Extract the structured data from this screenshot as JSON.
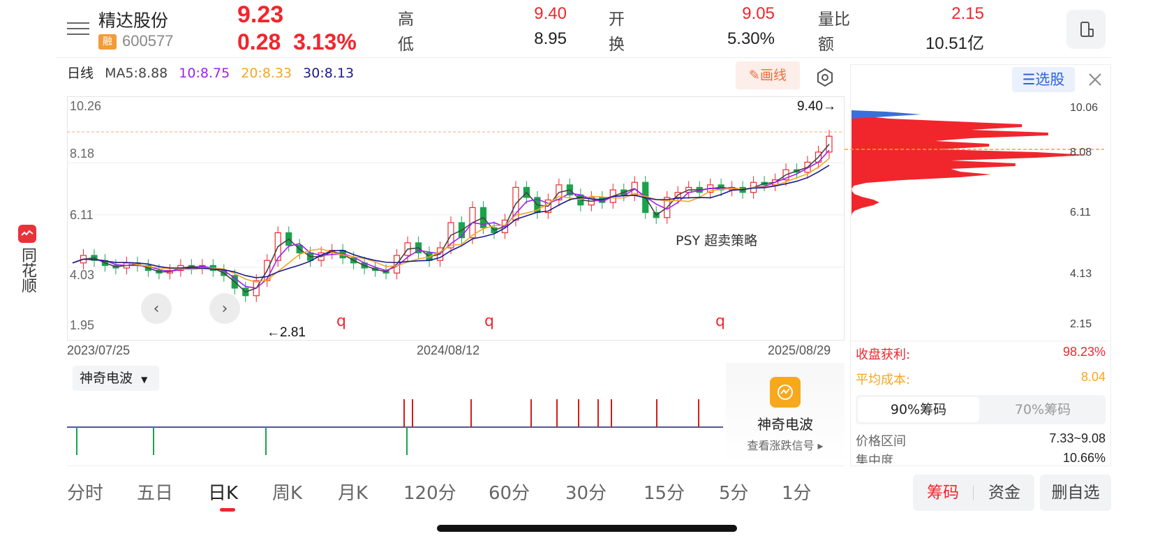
{
  "brand": {
    "name": "同花顺",
    "logo_icon": "ths-logo-icon"
  },
  "header": {
    "stock_name": "精达股份",
    "margin_tag": "融",
    "code": "600577",
    "price": "9.23",
    "change_abs": "0.28",
    "change_pct": "3.13%",
    "stats": [
      {
        "label": "高",
        "value": "9.40",
        "color": "#f0262c"
      },
      {
        "label": "低",
        "value": "8.95",
        "color": "#222222"
      },
      {
        "label": "开",
        "value": "9.05",
        "color": "#f0262c"
      },
      {
        "label": "换",
        "value": "5.30%",
        "color": "#222222"
      },
      {
        "label": "量比",
        "value": "2.15",
        "color": "#f0262c"
      },
      {
        "label": "额",
        "value": "10.51亿",
        "color": "#222222"
      }
    ]
  },
  "ma_row": {
    "period": "日线",
    "ma5": "MA5:8.88",
    "ma10": "10:8.75",
    "ma20": "20:8.33",
    "ma30": "30:8.13",
    "colors": {
      "ma5": "#444444",
      "ma10": "#a020f0",
      "ma20": "#f5a623",
      "ma30": "#1a1a8c"
    }
  },
  "toolbar": {
    "draw_label": "画线",
    "pick_label": "选股"
  },
  "chart_data": {
    "type": "candlestick",
    "y_ticks": [
      "10.26",
      "8.18",
      "6.11",
      "4.03",
      "1.95"
    ],
    "x_ticks": [
      "2023/07/25",
      "2024/08/12",
      "2025/08/29"
    ],
    "ylim": [
      1.95,
      10.26
    ],
    "high_marker": "9.40→",
    "low_marker": "←2.81",
    "strategy_label": "PSY 超卖策略",
    "q_markers": [
      "q",
      "q",
      "q"
    ],
    "close_series": [
      4.2,
      4.5,
      4.3,
      4.1,
      4.0,
      4.2,
      4.1,
      3.9,
      3.8,
      3.9,
      4.1,
      4.0,
      4.1,
      3.9,
      3.7,
      3.2,
      2.9,
      3.5,
      4.3,
      5.4,
      4.9,
      4.6,
      4.3,
      4.6,
      4.7,
      4.4,
      4.2,
      4.0,
      3.9,
      3.8,
      4.5,
      5.0,
      4.6,
      4.3,
      4.8,
      5.8,
      5.2,
      6.4,
      5.6,
      5.4,
      5.9,
      7.2,
      6.8,
      6.2,
      6.7,
      7.3,
      6.9,
      6.5,
      6.8,
      6.6,
      7.1,
      6.9,
      7.4,
      6.2,
      6.0,
      6.8,
      7.0,
      7.2,
      7.0,
      7.3,
      7.1,
      7.2,
      7.0,
      7.4,
      7.3,
      7.5,
      7.9,
      7.8,
      8.2,
      8.6,
      9.23
    ],
    "chips_axis": [
      "10.06",
      "8.08",
      "6.11",
      "4.13",
      "2.15"
    ]
  },
  "chips": {
    "profit_label": "收盘获利:",
    "profit_value": "98.23%",
    "avg_cost_label": "平均成本:",
    "avg_cost_value": "8.04",
    "tabs": [
      "90%筹码",
      "70%筹码"
    ],
    "range_label": "价格区间",
    "range_value": "7.33~9.08",
    "concentration_label": "集中度",
    "concentration_value": "10.66%"
  },
  "indicator": {
    "name": "神奇电波",
    "promo_title": "神奇电波",
    "promo_sub": "查看涨跌信号 ▸"
  },
  "period_tabs": [
    "分时",
    "五日",
    "日K",
    "周K",
    "月K",
    "120分",
    "60分",
    "30分",
    "15分",
    "5分",
    "1分"
  ],
  "actions": {
    "chips": "筹码",
    "funds": "资金",
    "delete": "删自选"
  }
}
